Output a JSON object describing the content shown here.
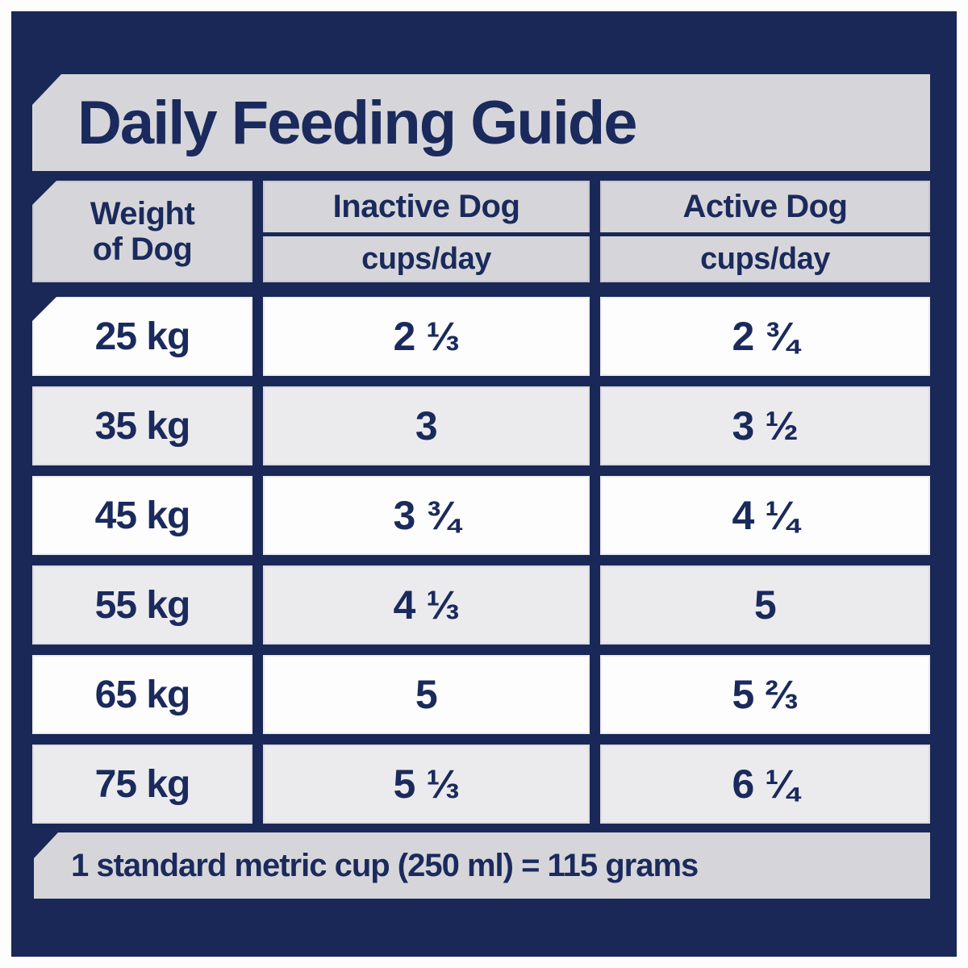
{
  "title": "Daily Feeding Guide",
  "chart_data": {
    "type": "table",
    "title": "Daily Feeding Guide",
    "columns": [
      "Weight of Dog",
      "Inactive Dog (cups/day)",
      "Active Dog (cups/day)"
    ],
    "header": {
      "weight_line1": "Weight",
      "weight_line2": "of Dog",
      "inactive_label": "Inactive Dog",
      "inactive_unit": "cups/day",
      "active_label": "Active Dog",
      "active_unit": "cups/day"
    },
    "weights_kg": [
      25,
      35,
      45,
      55,
      65,
      75
    ],
    "rows": [
      {
        "weight": "25 kg",
        "inactive_cups": "2 ⅓",
        "active_cups": "2 ¾"
      },
      {
        "weight": "35 kg",
        "inactive_cups": "3",
        "active_cups": "3 ½"
      },
      {
        "weight": "45 kg",
        "inactive_cups": "3 ¾",
        "active_cups": "4 ¼"
      },
      {
        "weight": "55 kg",
        "inactive_cups": "4 ⅓",
        "active_cups": "5"
      },
      {
        "weight": "65 kg",
        "inactive_cups": "5",
        "active_cups": "5 ⅔"
      },
      {
        "weight": "75 kg",
        "inactive_cups": "5 ⅓",
        "active_cups": "6 ¼"
      }
    ],
    "footnote": "1 standard metric cup (250 ml) = 115 grams"
  },
  "colors": {
    "navy": "#1a2857",
    "band_gray": "#d6d6da",
    "row_gray": "#ebebee",
    "row_white": "#fdfdfe",
    "text_navy": "#1b2a5c"
  }
}
